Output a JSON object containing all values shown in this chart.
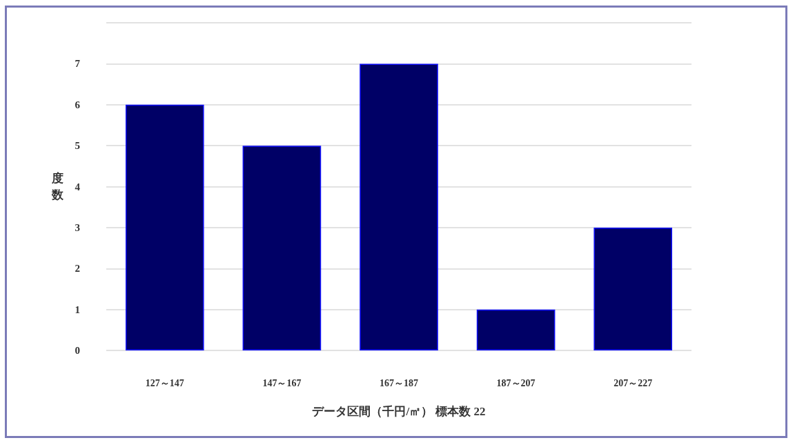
{
  "chart_data": {
    "type": "bar",
    "categories": [
      "127～147",
      "147～167",
      "167～187",
      "187～207",
      "207～227"
    ],
    "values": [
      6,
      5,
      7,
      1,
      3
    ],
    "color": "#000066",
    "xlabel": "データ区間（千円/㎡） 標本数 22",
    "ylabel": "度数",
    "ylim": [
      0,
      8
    ],
    "yticks": [
      0,
      1,
      2,
      3,
      4,
      5,
      6,
      7,
      {
        "value": 8,
        "label": null
      }
    ],
    "grid": "y"
  }
}
